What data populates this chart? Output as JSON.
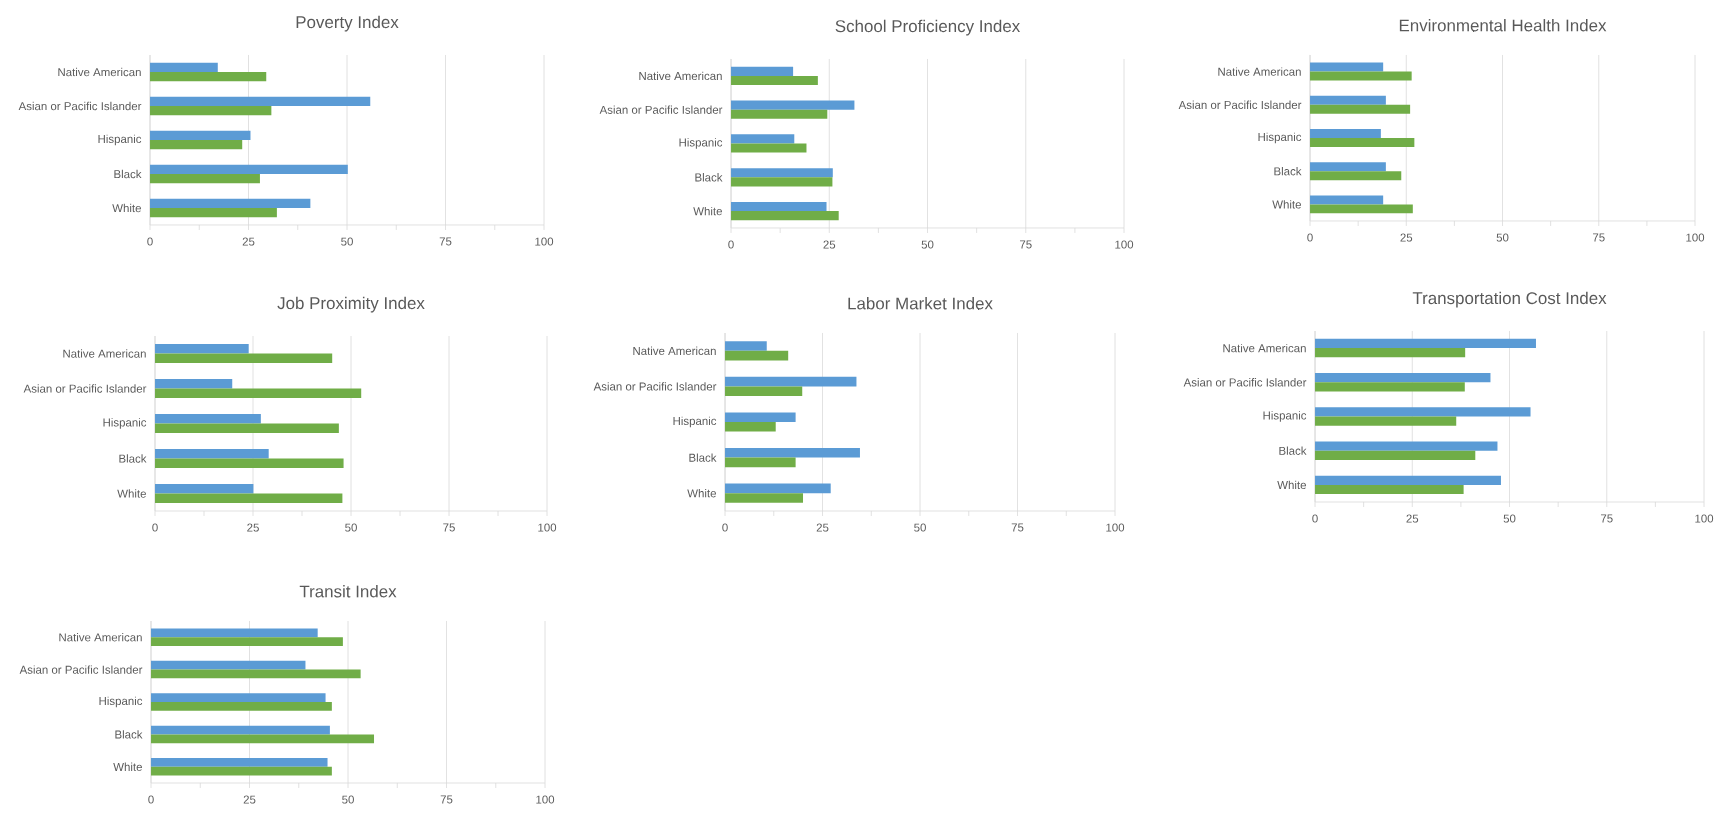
{
  "chart_data": [
    {
      "type": "bar",
      "orientation": "horizontal",
      "title": "Poverty Index",
      "categories": [
        "Native American",
        "Asian or Pacific Islander",
        "Hispanic",
        "Black",
        "White"
      ],
      "series": [
        {
          "color": "#5b9bd5",
          "values": [
            17.2,
            55.9,
            25.5,
            50.2,
            40.7
          ]
        },
        {
          "color": "#70ad47",
          "values": [
            29.5,
            30.8,
            23.4,
            27.9,
            32.2
          ]
        }
      ],
      "xlim": [
        0,
        100
      ],
      "xticks": [
        0,
        {
          "value": 12.5,
          "label": null
        },
        25,
        {
          "value": 37.5,
          "label": null
        },
        50,
        {
          "value": 62.5,
          "label": null
        },
        75,
        {
          "value": 87.5,
          "label": null
        },
        100
      ],
      "grid": "x"
    },
    {
      "type": "bar",
      "orientation": "horizontal",
      "title": "School Proficiency Index",
      "categories": [
        "Native American",
        "Asian or Pacific Islander",
        "Hispanic",
        "Black",
        "White"
      ],
      "series": [
        {
          "color": "#5b9bd5",
          "values": [
            15.8,
            31.4,
            16.1,
            25.9,
            24.3
          ]
        },
        {
          "color": "#70ad47",
          "values": [
            22.1,
            24.5,
            19.2,
            25.8,
            27.4
          ]
        }
      ],
      "xlim": [
        0,
        100
      ],
      "xticks": [
        0,
        {
          "value": 12.5,
          "label": null
        },
        25,
        {
          "value": 37.5,
          "label": null
        },
        50,
        {
          "value": 62.5,
          "label": null
        },
        75,
        {
          "value": 87.5,
          "label": null
        },
        100
      ],
      "grid": "x"
    },
    {
      "type": "bar",
      "orientation": "horizontal",
      "title": "Environmental Health Index",
      "categories": [
        "Native American",
        "Asian or Pacific Islander",
        "Hispanic",
        "Black",
        "White"
      ],
      "series": [
        {
          "color": "#5b9bd5",
          "values": [
            19.0,
            19.7,
            18.4,
            19.7,
            19.0
          ]
        },
        {
          "color": "#70ad47",
          "values": [
            26.4,
            26.0,
            27.1,
            23.7,
            26.7
          ]
        }
      ],
      "xlim": [
        0,
        100
      ],
      "xticks": [
        0,
        {
          "value": 12.5,
          "label": null
        },
        25,
        {
          "value": 37.5,
          "label": null
        },
        50,
        {
          "value": 62.5,
          "label": null
        },
        75,
        {
          "value": 87.5,
          "label": null
        },
        100
      ],
      "grid": "x"
    },
    {
      "type": "bar",
      "orientation": "horizontal",
      "title": "Job Proximity Index",
      "categories": [
        "Native American",
        "Asian or Pacific Islander",
        "Hispanic",
        "Black",
        "White"
      ],
      "series": [
        {
          "color": "#5b9bd5",
          "values": [
            23.9,
            19.7,
            27.0,
            29.0,
            25.1
          ]
        },
        {
          "color": "#70ad47",
          "values": [
            45.2,
            52.6,
            46.9,
            48.1,
            47.8
          ]
        }
      ],
      "xlim": [
        0,
        100
      ],
      "xticks": [
        0,
        {
          "value": 12.5,
          "label": null
        },
        25,
        {
          "value": 37.5,
          "label": null
        },
        50,
        {
          "value": 62.5,
          "label": null
        },
        75,
        {
          "value": 87.5,
          "label": null
        },
        100
      ],
      "grid": "x"
    },
    {
      "type": "bar",
      "orientation": "horizontal",
      "title": "Labor Market Index",
      "categories": [
        "Native American",
        "Asian or Pacific Islander",
        "Hispanic",
        "Black",
        "White"
      ],
      "series": [
        {
          "color": "#5b9bd5",
          "values": [
            10.7,
            33.7,
            18.1,
            34.6,
            27.1
          ]
        },
        {
          "color": "#70ad47",
          "values": [
            16.2,
            19.8,
            13.0,
            18.1,
            20.0
          ]
        }
      ],
      "xlim": [
        0,
        100
      ],
      "xticks": [
        0,
        {
          "value": 12.5,
          "label": null
        },
        25,
        {
          "value": 37.5,
          "label": null
        },
        50,
        {
          "value": 62.5,
          "label": null
        },
        75,
        {
          "value": 87.5,
          "label": null
        },
        100
      ],
      "grid": "x"
    },
    {
      "type": "bar",
      "orientation": "horizontal",
      "title": "Transportation Cost Index",
      "categories": [
        "Native American",
        "Asian or Pacific Islander",
        "Hispanic",
        "Black",
        "White"
      ],
      "series": [
        {
          "color": "#5b9bd5",
          "values": [
            56.8,
            45.1,
            55.4,
            46.9,
            47.8
          ]
        },
        {
          "color": "#70ad47",
          "values": [
            38.6,
            38.5,
            36.3,
            41.2,
            38.2
          ]
        }
      ],
      "xlim": [
        0,
        100
      ],
      "xticks": [
        0,
        {
          "value": 12.5,
          "label": null
        },
        25,
        {
          "value": 37.5,
          "label": null
        },
        50,
        {
          "value": 62.5,
          "label": null
        },
        75,
        {
          "value": 87.5,
          "label": null
        },
        100
      ],
      "grid": "x"
    },
    {
      "type": "bar",
      "orientation": "horizontal",
      "title": "Transit Index",
      "categories": [
        "Native American",
        "Asian or Pacific Islander",
        "Hispanic",
        "Black",
        "White"
      ],
      "series": [
        {
          "color": "#5b9bd5",
          "values": [
            42.3,
            39.2,
            44.3,
            45.4,
            44.8
          ]
        },
        {
          "color": "#70ad47",
          "values": [
            48.7,
            53.2,
            45.9,
            56.6,
            45.9
          ]
        }
      ],
      "xlim": [
        0,
        100
      ],
      "xticks": [
        0,
        {
          "value": 12.5,
          "label": null
        },
        25,
        {
          "value": 37.5,
          "label": null
        },
        50,
        {
          "value": 62.5,
          "label": null
        },
        75,
        {
          "value": 87.5,
          "label": null
        },
        100
      ],
      "grid": "x"
    }
  ]
}
